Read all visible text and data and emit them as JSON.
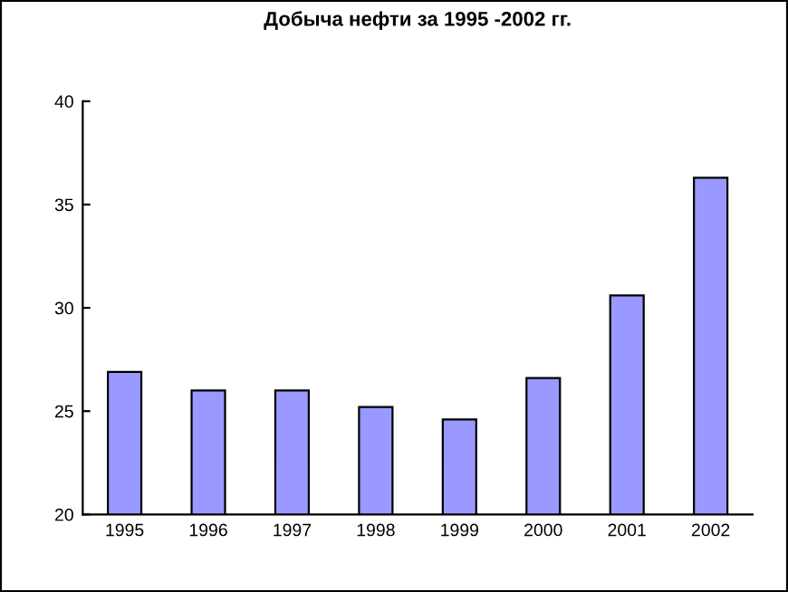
{
  "chart_data": {
    "type": "bar",
    "title": "Добыча нефти за 1995 -2002 гг.",
    "categories": [
      "1995",
      "1996",
      "1997",
      "1998",
      "1999",
      "2000",
      "2001",
      "2002"
    ],
    "values": [
      26.9,
      26.0,
      26.0,
      25.2,
      24.6,
      26.6,
      30.6,
      36.3
    ],
    "color": "#9999ff",
    "ylim": [
      20,
      40
    ],
    "yticks": [
      20,
      25,
      30,
      35,
      40
    ],
    "grid": false,
    "legend": false
  }
}
